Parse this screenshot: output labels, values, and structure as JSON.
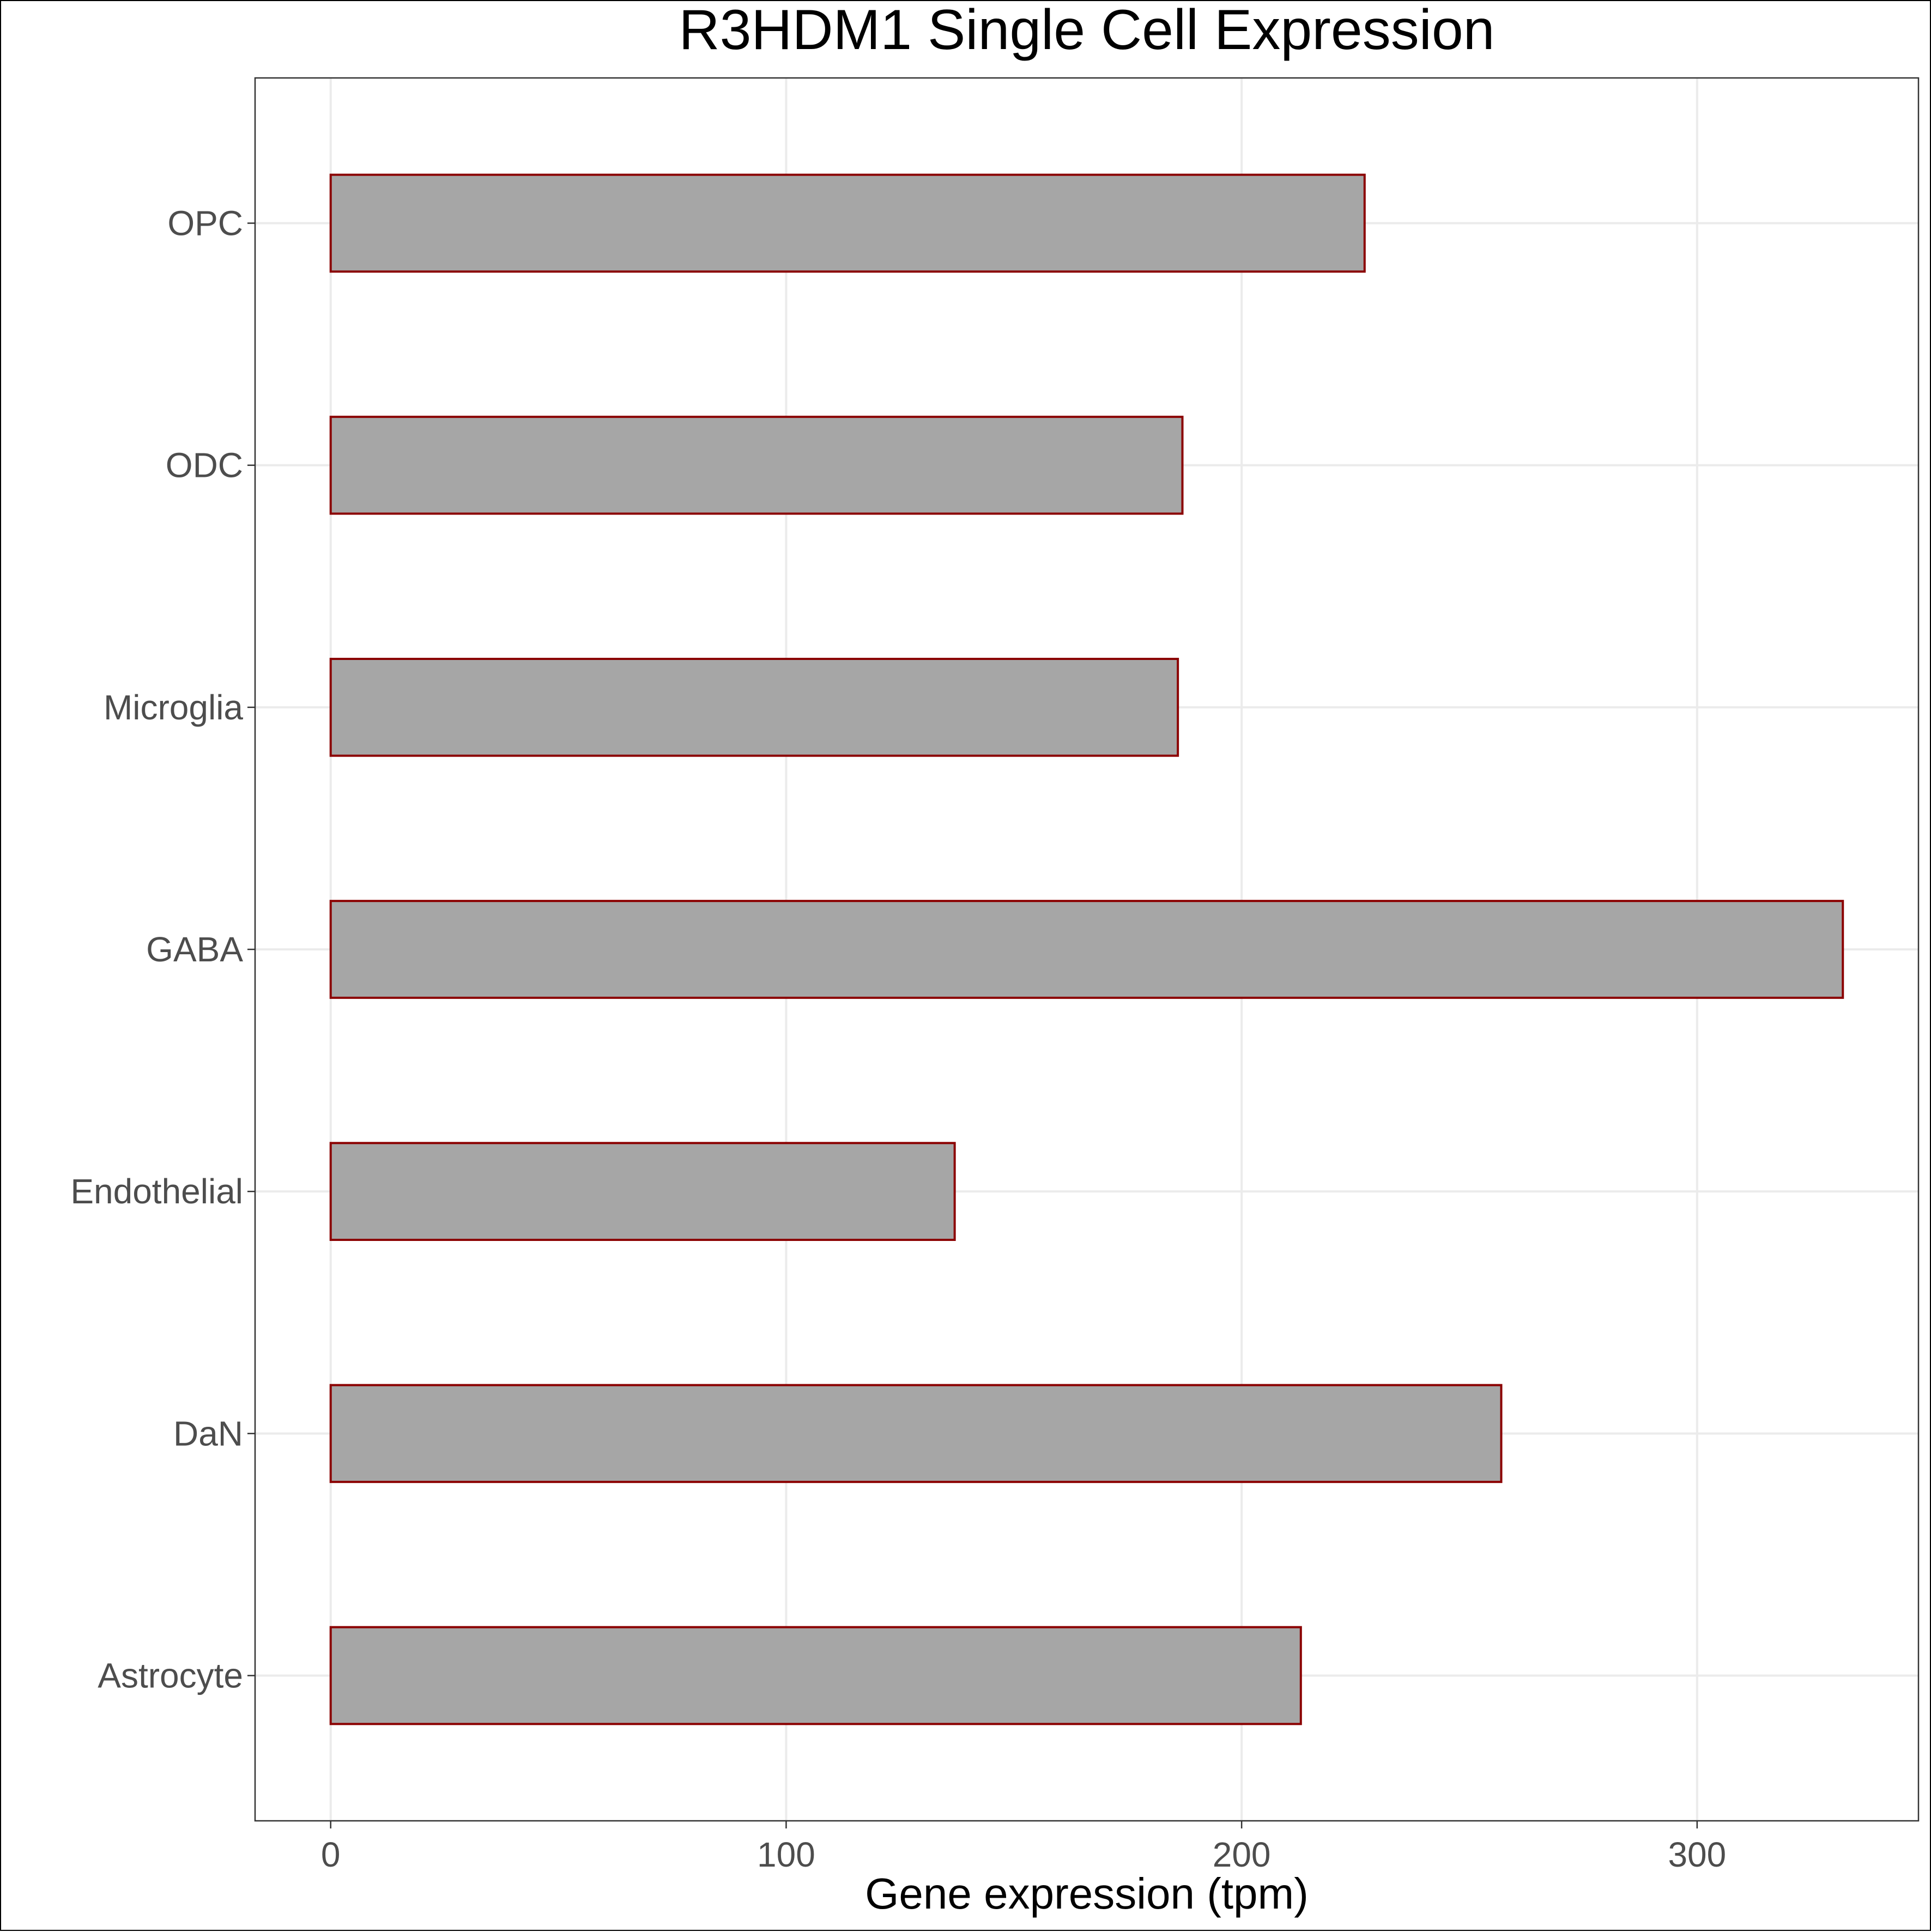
{
  "chart_data": {
    "type": "bar",
    "orientation": "horizontal",
    "title": "R3HDM1 Single Cell Expression",
    "xlabel": "Gene expression (tpm)",
    "ylabel": "",
    "categories": [
      "Astrocyte",
      "DaN",
      "Endothelial",
      "GABA",
      "Microglia",
      "ODC",
      "OPC"
    ],
    "values": [
      213,
      257,
      137,
      332,
      186,
      187,
      227
    ],
    "xlim": [
      -16.6,
      348.6
    ],
    "xticks": [
      0,
      100,
      200,
      300
    ],
    "grid": true,
    "legend": "none",
    "bar_fill": "#a6a6a6",
    "bar_outline": "#8b0000",
    "grid_color": "#ebebeb",
    "panel_border": "#333333"
  }
}
